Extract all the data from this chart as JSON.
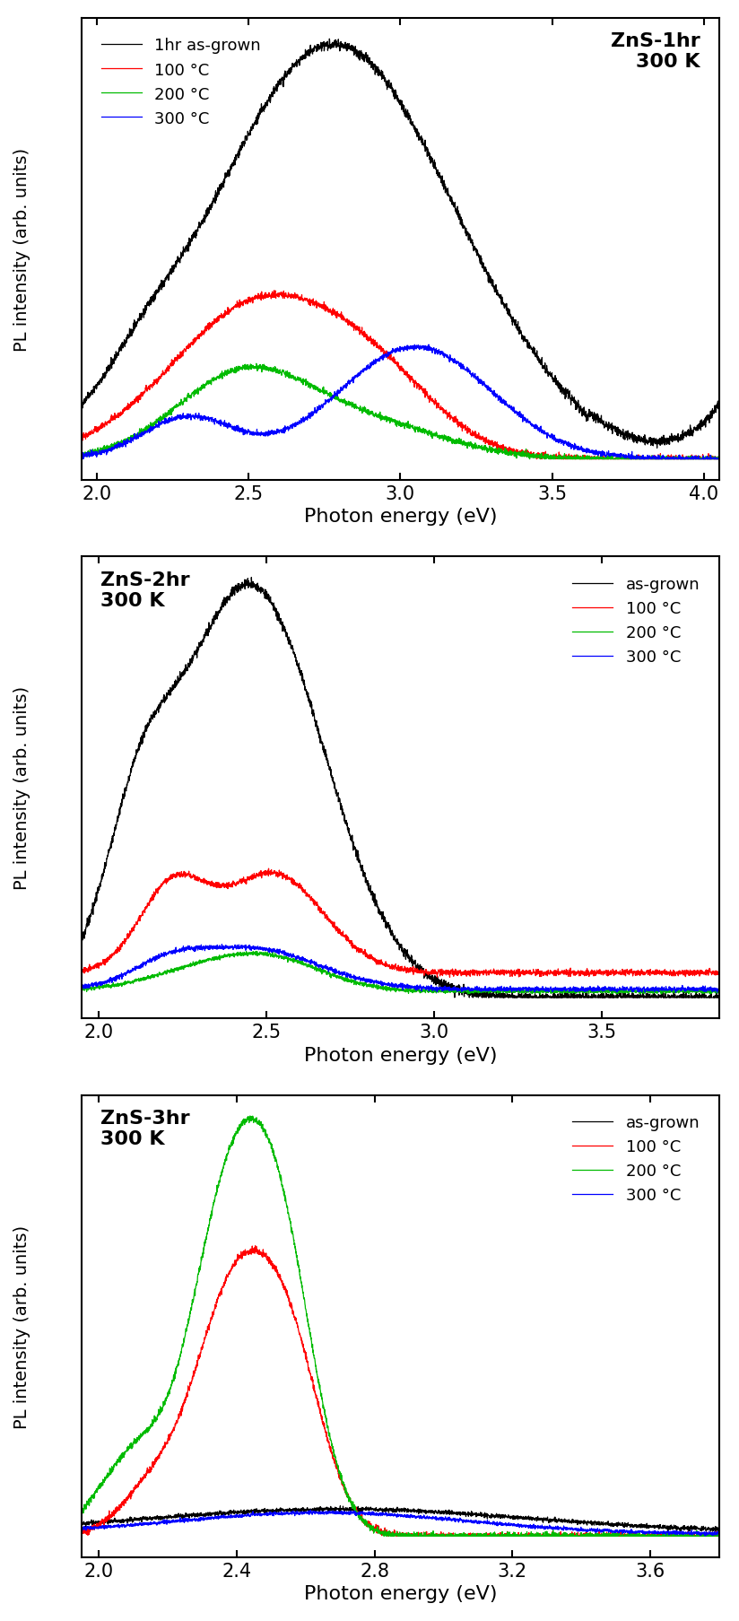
{
  "panels": [
    {
      "title": "ZnS-1hr\n300 K",
      "title_loc": "upper right",
      "legend_loc": "upper left",
      "legend_labels": [
        "1hr as-grown",
        "100 °C",
        "200 °C",
        "300 °C"
      ],
      "xlim": [
        1.95,
        4.05
      ],
      "xticks": [
        2.0,
        2.5,
        3.0,
        3.5,
        4.0
      ],
      "xticklabels": [
        "2.0",
        "2.5",
        "3.0",
        "3.5",
        "4.0"
      ],
      "colors": [
        "#000000",
        "#ff0000",
        "#00bb00",
        "#0000ff"
      ]
    },
    {
      "title": "ZnS-2hr\n300 K",
      "title_loc": "upper left",
      "legend_loc": "upper right",
      "legend_labels": [
        "as-grown",
        "100 °C",
        "200 °C",
        "300 °C"
      ],
      "xlim": [
        1.95,
        3.85
      ],
      "xticks": [
        2.0,
        2.5,
        3.0,
        3.5
      ],
      "xticklabels": [
        "2.0",
        "2.5",
        "3.0",
        "3.5"
      ],
      "colors": [
        "#000000",
        "#ff0000",
        "#00bb00",
        "#0000ff"
      ]
    },
    {
      "title": "ZnS-3hr\n300 K",
      "title_loc": "upper left",
      "legend_loc": "upper right",
      "legend_labels": [
        "as-grown",
        "100 °C",
        "200 °C",
        "300 °C"
      ],
      "xlim": [
        1.95,
        3.8
      ],
      "xticks": [
        2.0,
        2.4,
        2.8,
        3.2,
        3.6
      ],
      "xticklabels": [
        "2.0",
        "2.4",
        "2.8",
        "3.2",
        "3.6"
      ],
      "colors": [
        "#000000",
        "#ff0000",
        "#00bb00",
        "#0000ff"
      ]
    }
  ],
  "ylabel": "PL intensity (arb. units)",
  "xlabel": "Photon energy (eV)",
  "background_color": "#ffffff",
  "noise_scale": 0.008
}
